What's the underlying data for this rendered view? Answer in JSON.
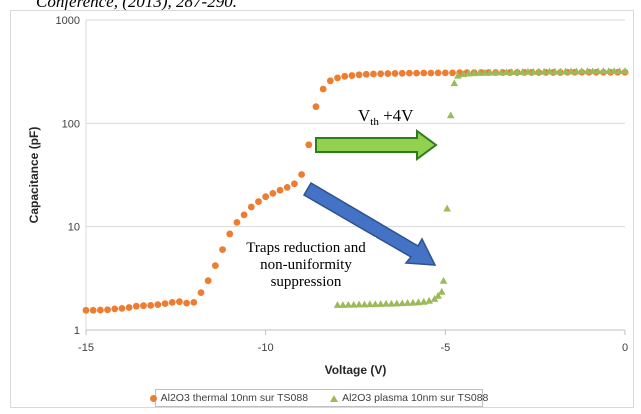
{
  "caption": "Conference, (2013), 287-290.",
  "chart_data": {
    "type": "scatter",
    "xlabel": "Voltage (V)",
    "ylabel": "Capacitance (pF)",
    "xlim": [
      -15,
      0
    ],
    "ylim": [
      1,
      1000
    ],
    "yscale": "log",
    "x_ticks": [
      "-15",
      "-10",
      "-5",
      "0"
    ],
    "y_ticks": [
      "1",
      "10",
      "100",
      "1000"
    ],
    "grid": "horizontal",
    "legend_position": "bottom",
    "series": [
      {
        "name": "Al2O3 thermal 10nm sur TS088",
        "color": "#ed7d31",
        "marker": "circle",
        "points": [
          [
            -15.0,
            1.55
          ],
          [
            -14.8,
            1.55
          ],
          [
            -14.6,
            1.56
          ],
          [
            -14.4,
            1.57
          ],
          [
            -14.2,
            1.6
          ],
          [
            -14.0,
            1.62
          ],
          [
            -13.8,
            1.65
          ],
          [
            -13.6,
            1.7
          ],
          [
            -13.4,
            1.72
          ],
          [
            -13.2,
            1.73
          ],
          [
            -13.0,
            1.76
          ],
          [
            -12.8,
            1.8
          ],
          [
            -12.6,
            1.85
          ],
          [
            -12.4,
            1.88
          ],
          [
            -12.2,
            1.82
          ],
          [
            -12.0,
            1.85
          ],
          [
            -11.8,
            2.3
          ],
          [
            -11.6,
            3.0
          ],
          [
            -11.4,
            4.2
          ],
          [
            -11.2,
            6.0
          ],
          [
            -11.0,
            8.5
          ],
          [
            -10.8,
            11.0
          ],
          [
            -10.6,
            13.0
          ],
          [
            -10.4,
            15.5
          ],
          [
            -10.2,
            17.5
          ],
          [
            -10.0,
            19.5
          ],
          [
            -9.8,
            21.0
          ],
          [
            -9.6,
            22.5
          ],
          [
            -9.4,
            24.0
          ],
          [
            -9.2,
            26.0
          ],
          [
            -9.0,
            32.0
          ],
          [
            -8.8,
            62.0
          ],
          [
            -8.6,
            145.0
          ],
          [
            -8.4,
            215.0
          ],
          [
            -8.2,
            258.0
          ],
          [
            -8.0,
            275.0
          ],
          [
            -7.8,
            285.0
          ],
          [
            -7.6,
            290.0
          ],
          [
            -7.4,
            295.0
          ],
          [
            -7.2,
            298.0
          ],
          [
            -7.0,
            300.0
          ],
          [
            -6.8,
            302.0
          ],
          [
            -6.6,
            303.0
          ],
          [
            -6.4,
            304.0
          ],
          [
            -6.2,
            305.0
          ],
          [
            -6.0,
            306.0
          ],
          [
            -5.8,
            306.0
          ],
          [
            -5.6,
            307.0
          ],
          [
            -5.4,
            307.0
          ],
          [
            -5.2,
            308.0
          ],
          [
            -5.0,
            308.0
          ],
          [
            -4.8,
            308.0
          ],
          [
            -4.6,
            309.0
          ],
          [
            -4.4,
            309.0
          ],
          [
            -4.2,
            309.0
          ],
          [
            -4.0,
            310.0
          ],
          [
            -3.8,
            310.0
          ],
          [
            -3.6,
            310.0
          ],
          [
            -3.4,
            310.0
          ],
          [
            -3.2,
            310.0
          ],
          [
            -3.0,
            311.0
          ],
          [
            -2.8,
            311.0
          ],
          [
            -2.6,
            311.0
          ],
          [
            -2.4,
            311.0
          ],
          [
            -2.2,
            311.0
          ],
          [
            -2.0,
            311.0
          ],
          [
            -1.8,
            311.0
          ],
          [
            -1.6,
            312.0
          ],
          [
            -1.4,
            312.0
          ],
          [
            -1.2,
            312.0
          ],
          [
            -1.0,
            312.0
          ],
          [
            -0.8,
            312.0
          ],
          [
            -0.6,
            312.0
          ],
          [
            -0.4,
            312.0
          ],
          [
            -0.2,
            312.0
          ],
          [
            0.0,
            312.0
          ]
        ]
      },
      {
        "name": "Al2O3 plasma 10nm sur TS088",
        "color": "#9bbb59",
        "marker": "triangle",
        "points": [
          [
            -8.0,
            1.75
          ],
          [
            -7.85,
            1.75
          ],
          [
            -7.7,
            1.76
          ],
          [
            -7.55,
            1.76
          ],
          [
            -7.4,
            1.77
          ],
          [
            -7.25,
            1.77
          ],
          [
            -7.1,
            1.78
          ],
          [
            -6.95,
            1.78
          ],
          [
            -6.8,
            1.79
          ],
          [
            -6.65,
            1.8
          ],
          [
            -6.5,
            1.8
          ],
          [
            -6.35,
            1.81
          ],
          [
            -6.2,
            1.82
          ],
          [
            -6.05,
            1.83
          ],
          [
            -5.9,
            1.84
          ],
          [
            -5.75,
            1.86
          ],
          [
            -5.6,
            1.88
          ],
          [
            -5.45,
            1.92
          ],
          [
            -5.3,
            2.0
          ],
          [
            -5.2,
            2.15
          ],
          [
            -5.1,
            2.35
          ],
          [
            -5.05,
            3.0
          ],
          [
            -4.95,
            15.0
          ],
          [
            -4.85,
            120.0
          ],
          [
            -4.75,
            245.0
          ],
          [
            -4.65,
            290.0
          ],
          [
            -4.5,
            300.0
          ],
          [
            -4.35,
            304.0
          ],
          [
            -4.2,
            306.0
          ],
          [
            -4.05,
            308.0
          ],
          [
            -3.9,
            309.0
          ],
          [
            -3.75,
            310.0
          ],
          [
            -3.6,
            311.0
          ],
          [
            -3.45,
            312.0
          ],
          [
            -3.3,
            313.0
          ],
          [
            -3.15,
            314.0
          ],
          [
            -3.0,
            315.0
          ],
          [
            -2.85,
            315.0
          ],
          [
            -2.7,
            316.0
          ],
          [
            -2.55,
            316.0
          ],
          [
            -2.4,
            317.0
          ],
          [
            -2.25,
            317.0
          ],
          [
            -2.1,
            318.0
          ],
          [
            -1.95,
            318.0
          ],
          [
            -1.8,
            318.0
          ],
          [
            -1.65,
            319.0
          ],
          [
            -1.5,
            319.0
          ],
          [
            -1.35,
            319.0
          ],
          [
            -1.2,
            320.0
          ],
          [
            -1.05,
            320.0
          ],
          [
            -0.9,
            320.0
          ],
          [
            -0.75,
            320.0
          ],
          [
            -0.6,
            321.0
          ],
          [
            -0.45,
            321.0
          ],
          [
            -0.3,
            321.0
          ],
          [
            -0.15,
            321.0
          ],
          [
            0.0,
            321.0
          ]
        ]
      }
    ],
    "annotations": {
      "vth_base": "V",
      "vth_sub": "th",
      "vth_suffix": " +4V",
      "traps_line1": "Traps reduction and",
      "traps_line2": "non-uniformity",
      "traps_line3": "suppression"
    }
  }
}
